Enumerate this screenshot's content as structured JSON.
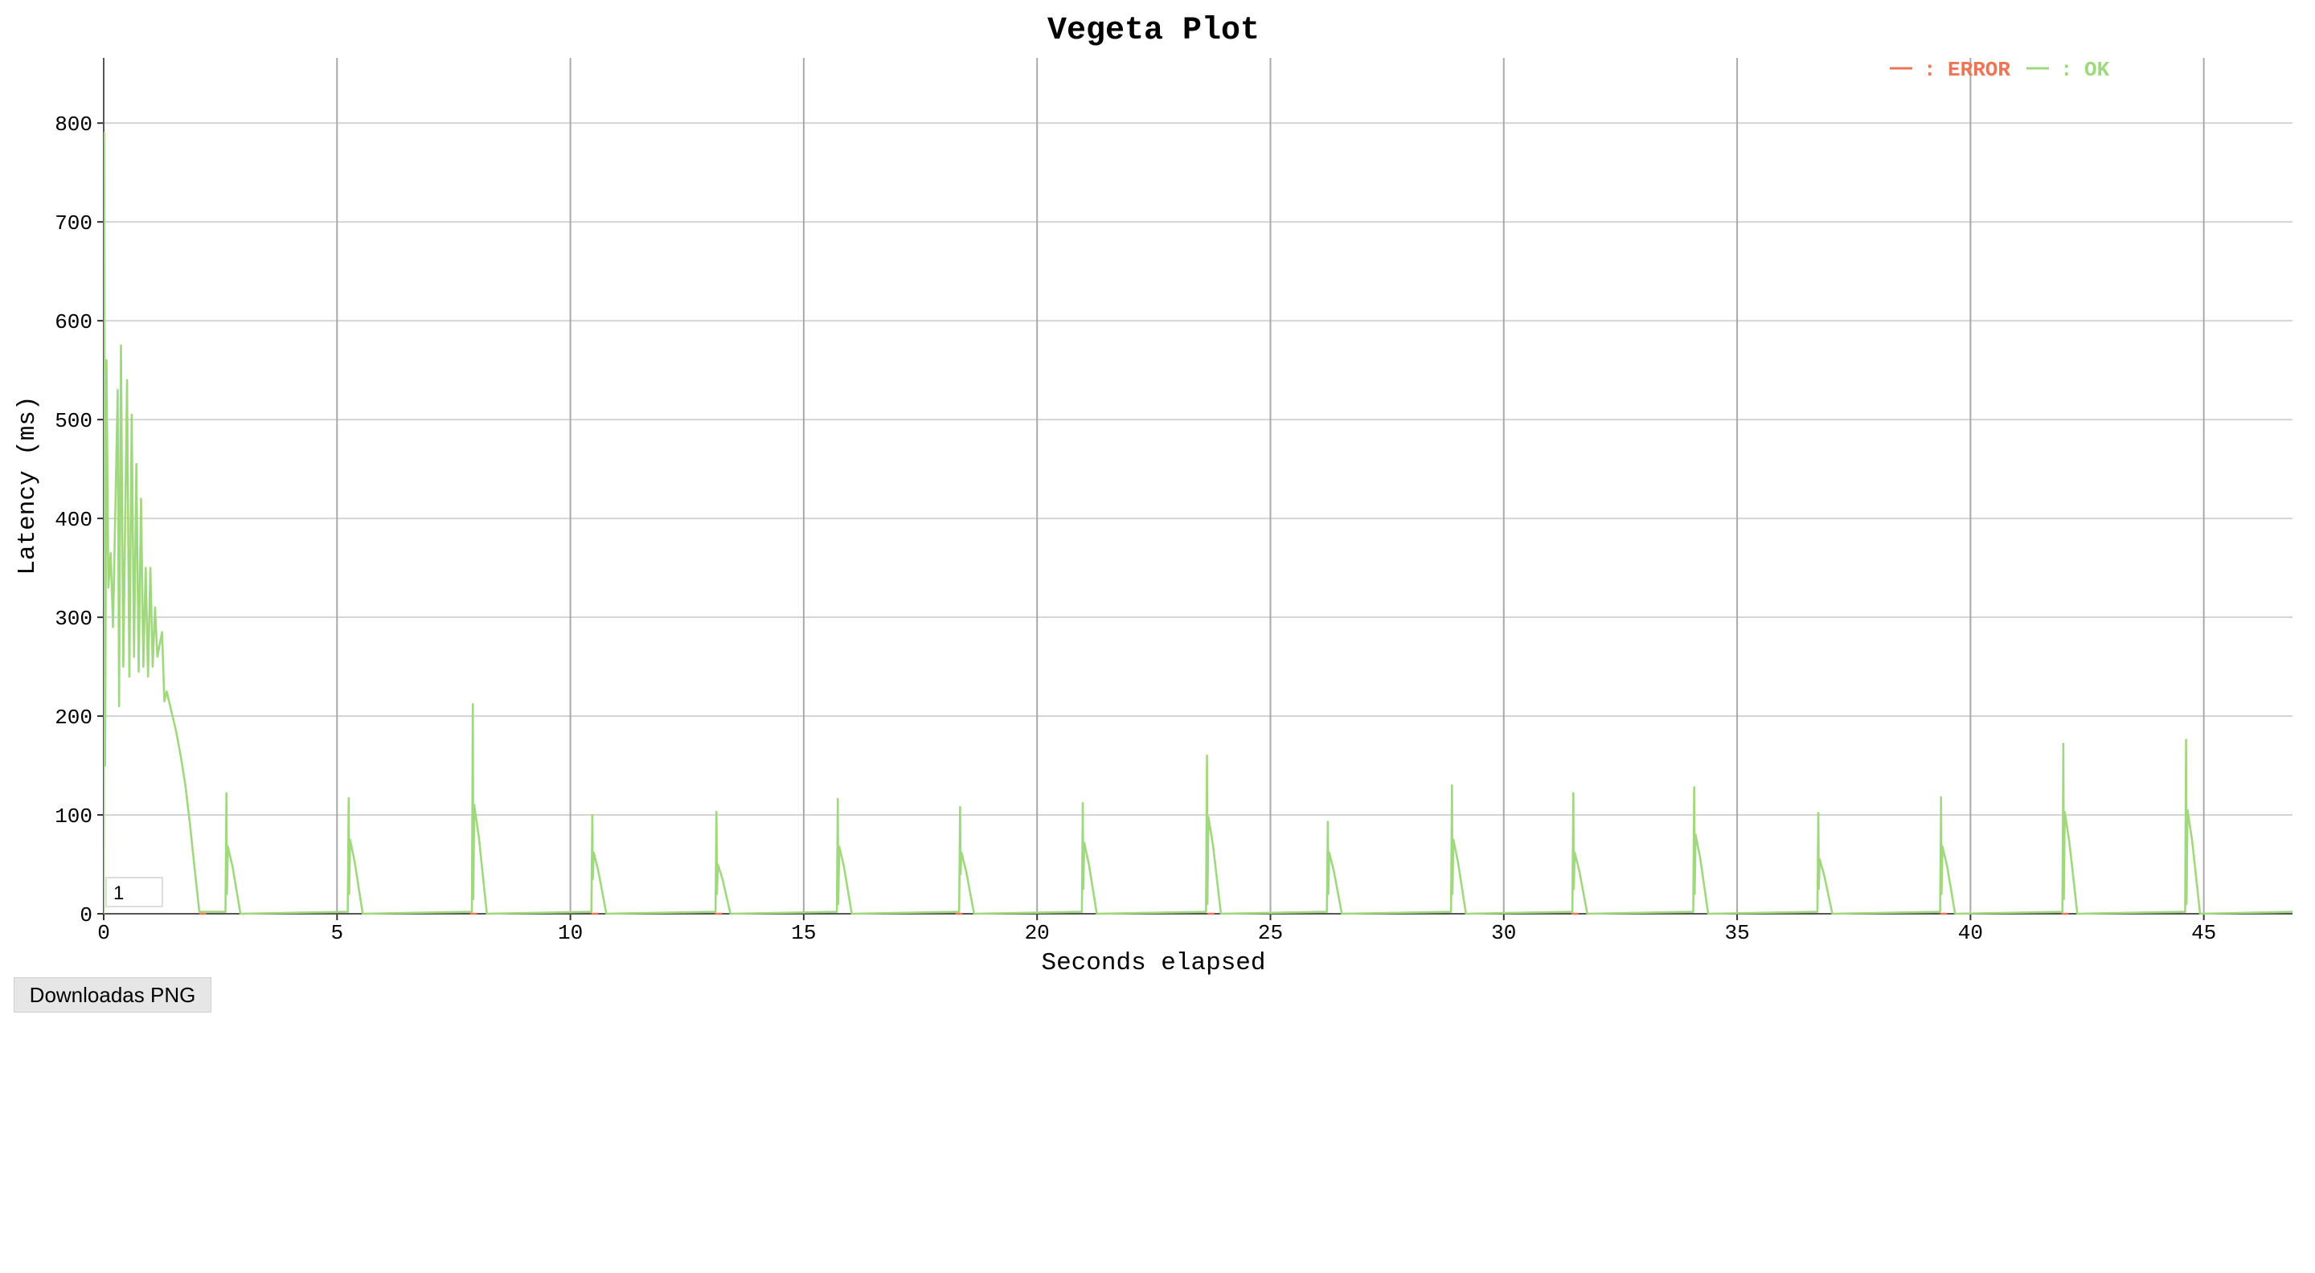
{
  "chart_data": {
    "type": "line",
    "title": "Vegeta Plot",
    "x_label": "Seconds elapsed",
    "y_label": "Latency (ms)",
    "legend_separator": ":",
    "legend_position": "top-right",
    "grid": true,
    "xlim": [
      0,
      46.9
    ],
    "ylim": [
      0,
      866
    ],
    "xticks": [
      0,
      5,
      10,
      15,
      20,
      25,
      30,
      35,
      40,
      45
    ],
    "yticks": [
      0,
      100,
      200,
      300,
      400,
      500,
      600,
      700,
      800
    ],
    "series": [
      {
        "name": "ERROR",
        "color": "#ee7457",
        "x": [
          2.05,
          2.2,
          2.3,
          7.85,
          8.0,
          8.1,
          10.45,
          10.6,
          10.7,
          13.1,
          13.25,
          13.35,
          18.25,
          18.4,
          18.5,
          23.65,
          23.8,
          23.9,
          31.45,
          31.6,
          31.7,
          39.35,
          39.5,
          39.6,
          41.95,
          42.1
        ],
        "values": [
          0,
          0,
          null,
          0,
          0,
          null,
          0,
          0,
          null,
          0,
          0,
          null,
          0,
          0,
          null,
          0,
          0,
          null,
          0,
          0,
          null,
          0,
          0,
          null,
          0,
          0
        ]
      },
      {
        "name": "OK",
        "color": "#9fd87d",
        "x": [
          0,
          0.01,
          0.03,
          0.06,
          0.1,
          0.15,
          0.2,
          0.3,
          0.33,
          0.37,
          0.42,
          0.5,
          0.55,
          0.6,
          0.65,
          0.7,
          0.75,
          0.8,
          0.85,
          0.9,
          0.95,
          1.0,
          1.05,
          1.1,
          1.15,
          1.25,
          1.3,
          1.35,
          1.45,
          1.55,
          1.65,
          1.75,
          1.85,
          1.95,
          2.05,
          2.61,
          2.63,
          2.64,
          2.66,
          2.76,
          2.93,
          5.23,
          5.25,
          5.26,
          5.28,
          5.38,
          5.55,
          7.89,
          7.91,
          7.92,
          7.94,
          8.04,
          8.21,
          10.45,
          10.47,
          10.48,
          10.5,
          10.6,
          10.77,
          13.11,
          13.13,
          13.14,
          13.16,
          13.26,
          13.43,
          15.71,
          15.73,
          15.74,
          15.76,
          15.86,
          16.03,
          18.33,
          18.35,
          18.36,
          18.38,
          18.48,
          18.65,
          20.96,
          20.98,
          20.99,
          21.01,
          21.11,
          21.28,
          23.62,
          23.64,
          23.65,
          23.67,
          23.77,
          23.94,
          26.21,
          26.23,
          26.24,
          26.26,
          26.36,
          26.53,
          28.87,
          28.89,
          28.9,
          28.92,
          29.02,
          29.19,
          31.47,
          31.49,
          31.5,
          31.52,
          31.62,
          31.79,
          34.06,
          34.08,
          34.09,
          34.11,
          34.21,
          34.38,
          36.72,
          36.74,
          36.75,
          36.77,
          36.87,
          37.04,
          39.35,
          39.37,
          39.38,
          39.4,
          39.5,
          39.67,
          41.97,
          41.99,
          42.0,
          42.02,
          42.12,
          42.29,
          44.6,
          44.62,
          44.63,
          44.65,
          44.75,
          44.92,
          46.9
        ],
        "values": [
          0,
          790,
          150,
          560,
          330,
          365,
          290,
          530,
          210,
          575,
          250,
          540,
          240,
          505,
          260,
          455,
          245,
          420,
          250,
          350,
          240,
          350,
          250,
          310,
          260,
          285,
          215,
          225,
          205,
          185,
          160,
          130,
          90,
          45,
          2,
          2,
          122,
          20,
          68,
          48,
          0,
          2,
          117,
          20,
          75,
          52,
          0,
          2,
          212,
          15,
          110,
          77,
          0,
          2,
          100,
          35,
          62,
          43,
          0,
          2,
          103,
          20,
          50,
          35,
          0,
          2,
          116,
          10,
          68,
          48,
          0,
          2,
          108,
          40,
          62,
          43,
          0,
          2,
          112,
          25,
          72,
          50,
          0,
          2,
          160,
          10,
          98,
          69,
          0,
          2,
          93,
          20,
          62,
          43,
          0,
          2,
          130,
          20,
          75,
          52,
          0,
          2,
          122,
          25,
          62,
          43,
          0,
          2,
          128,
          20,
          80,
          56,
          0,
          2,
          102,
          25,
          55,
          38,
          0,
          2,
          118,
          20,
          68,
          48,
          0,
          2,
          172,
          15,
          103,
          72,
          0,
          2,
          176,
          10,
          105,
          74,
          0,
          2
        ]
      }
    ]
  },
  "controls": {
    "input_value": "1",
    "download_button": "Downloadas PNG"
  }
}
